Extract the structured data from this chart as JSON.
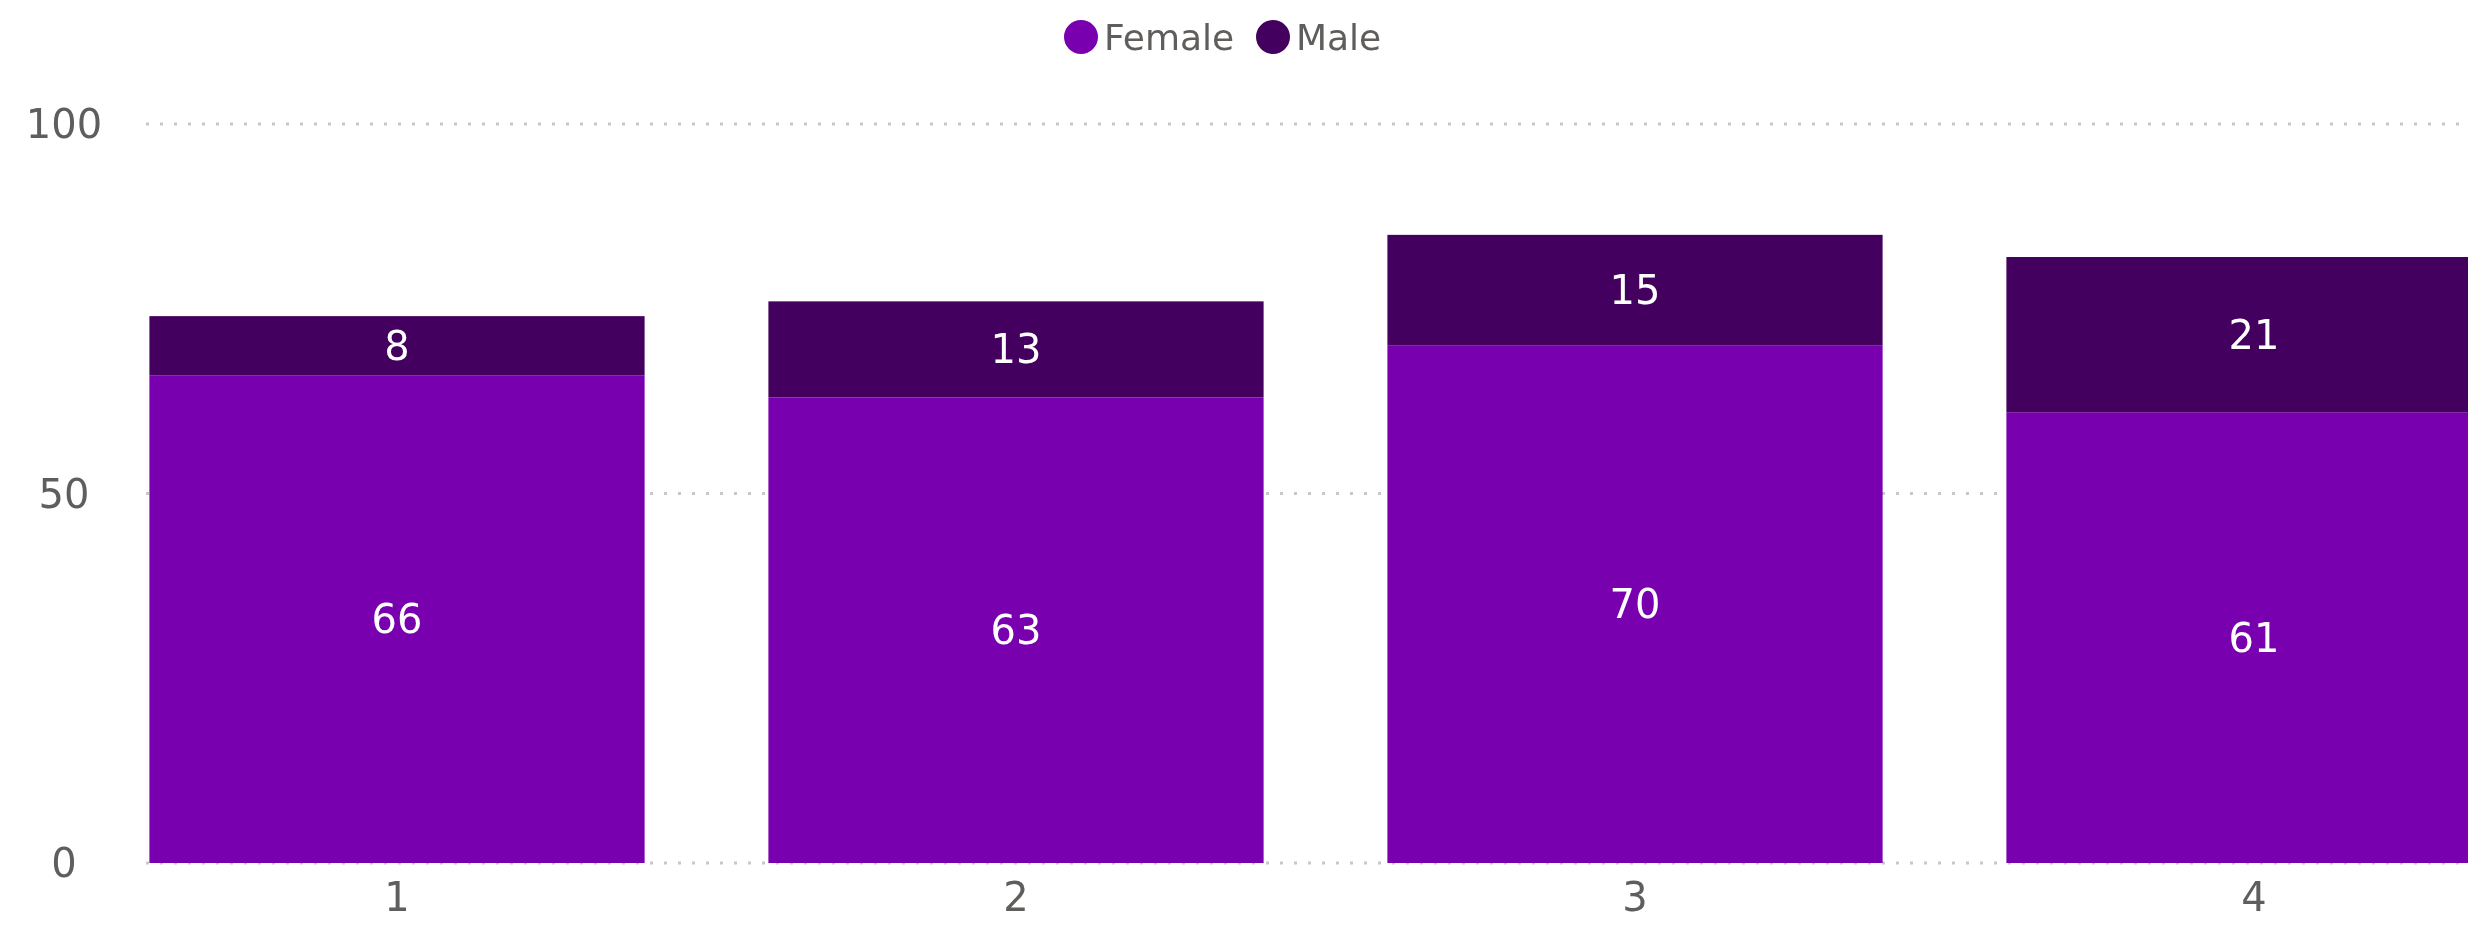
{
  "chart_data": {
    "type": "bar",
    "stacked": true,
    "categories": [
      "1",
      "2",
      "3",
      "4"
    ],
    "series": [
      {
        "name": "Female",
        "color": "#7800ae",
        "values": [
          66,
          63,
          70,
          61
        ]
      },
      {
        "name": "Male",
        "color": "#43005e",
        "values": [
          8,
          13,
          15,
          21
        ]
      }
    ],
    "ylim": [
      0,
      100
    ],
    "yticks": [
      0,
      50,
      100
    ],
    "grid": "y",
    "legend": "top",
    "data_labels": true
  }
}
